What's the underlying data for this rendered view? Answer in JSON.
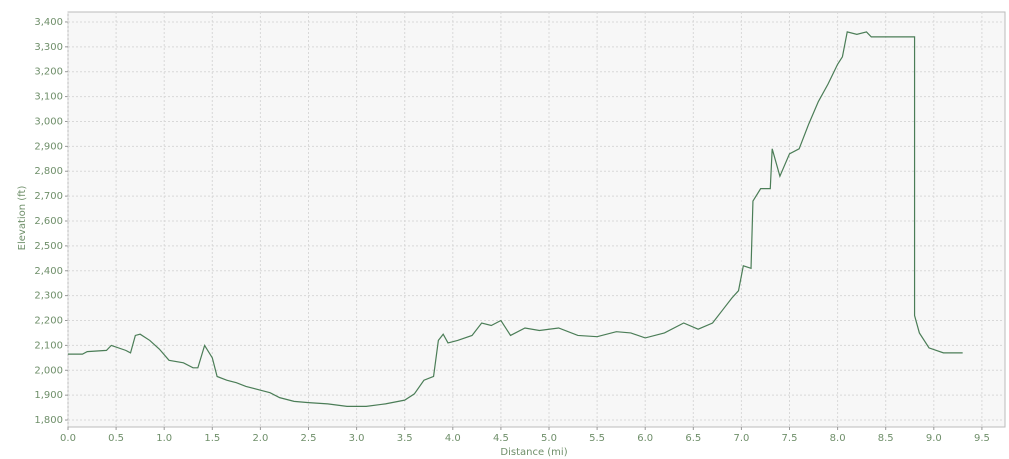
{
  "chart_data": {
    "type": "line",
    "x_label": "Distance (mi)",
    "y_label": "Elevation (ft)",
    "xlim": [
      0,
      9.74
    ],
    "ylim": [
      1772,
      3440
    ],
    "grid": true,
    "xticks": [
      {
        "value": 0,
        "label": "0.0"
      },
      0.5,
      {
        "value": 1,
        "label": "1.0"
      },
      1.5,
      {
        "value": 2,
        "label": "2.0"
      },
      2.5,
      {
        "value": 3,
        "label": "3.0"
      },
      3.5,
      {
        "value": 4,
        "label": "4.0"
      },
      4.5,
      {
        "value": 5,
        "label": "5.0"
      },
      5.5,
      {
        "value": 6,
        "label": "6.0"
      },
      6.5,
      {
        "value": 7,
        "label": "7.0"
      },
      7.5,
      {
        "value": 8,
        "label": "8.0"
      },
      8.5,
      {
        "value": 9,
        "label": "9.0"
      },
      9.5
    ],
    "yticks": [
      {
        "value": 1800,
        "label": "1,800"
      },
      {
        "value": 1900,
        "label": "1,900"
      },
      {
        "value": 2000,
        "label": "2,000"
      },
      {
        "value": 2100,
        "label": "2,100"
      },
      {
        "value": 2200,
        "label": "2,200"
      },
      {
        "value": 2300,
        "label": "2,300"
      },
      {
        "value": 2400,
        "label": "2,400"
      },
      {
        "value": 2500,
        "label": "2,500"
      },
      {
        "value": 2600,
        "label": "2,600"
      },
      {
        "value": 2700,
        "label": "2,700"
      },
      {
        "value": 2800,
        "label": "2,800"
      },
      {
        "value": 2900,
        "label": "2,900"
      },
      {
        "value": 3000,
        "label": "3,000"
      },
      {
        "value": 3100,
        "label": "3,100"
      },
      {
        "value": 3200,
        "label": "3,200"
      },
      {
        "value": 3300,
        "label": "3,300"
      },
      {
        "value": 3400,
        "label": "3,400"
      }
    ],
    "series": [
      {
        "color": "#4b7d57",
        "x": [
          0,
          0.15,
          0.2,
          0.4,
          0.45,
          0.6,
          0.65,
          0.7,
          0.75,
          0.85,
          0.95,
          1.05,
          1.2,
          1.3,
          1.35,
          1.42,
          1.5,
          1.55,
          1.65,
          1.75,
          1.85,
          2.0,
          2.1,
          2.2,
          2.35,
          2.5,
          2.7,
          2.9,
          3.1,
          3.3,
          3.5,
          3.6,
          3.7,
          3.8,
          3.85,
          3.9,
          3.95,
          4.05,
          4.2,
          4.3,
          4.4,
          4.5,
          4.6,
          4.75,
          4.9,
          5.1,
          5.3,
          5.5,
          5.7,
          5.85,
          6.0,
          6.2,
          6.4,
          6.55,
          6.7,
          6.8,
          6.9,
          6.97,
          7.02,
          7.1,
          7.12,
          7.2,
          7.3,
          7.32,
          7.4,
          7.5,
          7.6,
          7.7,
          7.8,
          7.9,
          8.0,
          8.05,
          8.1,
          8.2,
          8.3,
          8.35,
          8.8,
          8.8,
          8.85,
          8.95,
          9.1,
          9.3
        ],
        "values": [
          2065,
          2065,
          2075,
          2080,
          2100,
          2080,
          2070,
          2140,
          2145,
          2120,
          2085,
          2040,
          2030,
          2010,
          2010,
          2100,
          2050,
          1975,
          1960,
          1950,
          1935,
          1920,
          1910,
          1890,
          1875,
          1870,
          1865,
          1855,
          1855,
          1865,
          1880,
          1905,
          1960,
          1975,
          2120,
          2145,
          2110,
          2120,
          2140,
          2190,
          2180,
          2200,
          2140,
          2170,
          2160,
          2170,
          2140,
          2135,
          2155,
          2150,
          2130,
          2150,
          2190,
          2165,
          2190,
          2240,
          2290,
          2320,
          2420,
          2410,
          2680,
          2730,
          2730,
          2890,
          2780,
          2870,
          2890,
          2990,
          3080,
          3150,
          3230,
          3260,
          3360,
          3350,
          3360,
          3340,
          3340,
          2220,
          2150,
          2090,
          2070,
          2070
        ]
      }
    ]
  }
}
